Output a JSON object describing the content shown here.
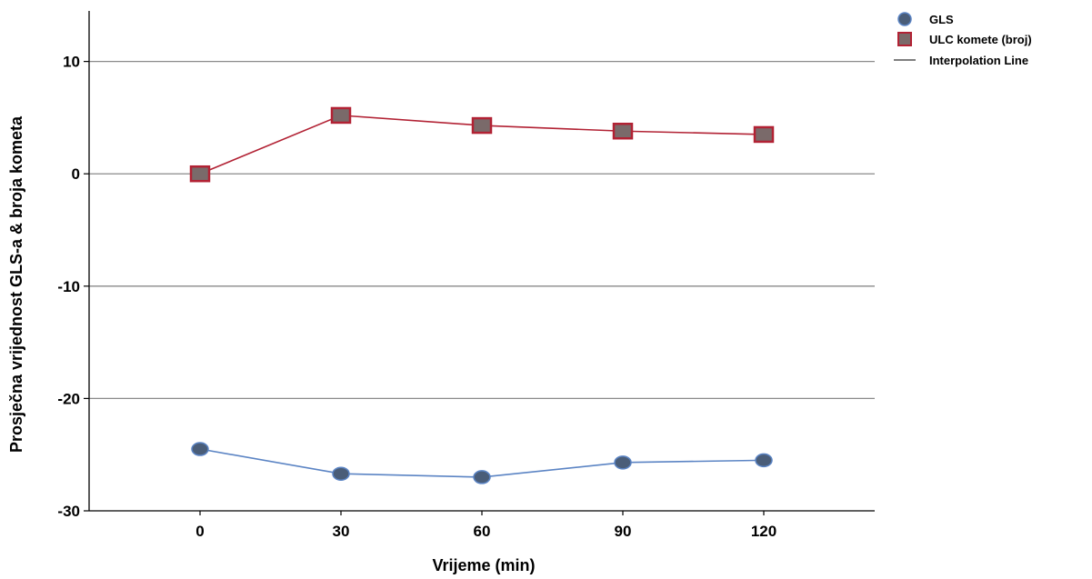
{
  "chart_data": {
    "type": "line",
    "title": "",
    "xlabel": "Vrijeme (min)",
    "ylabel": "Prosječna vrijednost GLS-a & broja kometa",
    "categories": [
      "0",
      "30",
      "60",
      "90",
      "120"
    ],
    "x": [
      0,
      30,
      60,
      90,
      120
    ],
    "ylim": [
      -30,
      14.5
    ],
    "yticks": [
      10,
      0,
      -10,
      -20,
      -30
    ],
    "grid": "horizontal",
    "legend_position": "top-right",
    "series": [
      {
        "name": "ULC komete (broj)",
        "marker": "square",
        "color": "#b22234",
        "fill": "#7a6a6a",
        "values": [
          0.0,
          5.2,
          4.3,
          3.8,
          3.5
        ]
      },
      {
        "name": "GLS",
        "marker": "circle",
        "color": "#5b84c4",
        "fill": "#4a5d78",
        "values": [
          -24.5,
          -26.7,
          -27.0,
          -25.7,
          -25.5
        ]
      }
    ],
    "legend": [
      {
        "label": "GLS",
        "symbol": "circle"
      },
      {
        "label": "ULC komete (broj)",
        "symbol": "square"
      },
      {
        "label": "Interpolation Line",
        "symbol": "line"
      }
    ]
  }
}
